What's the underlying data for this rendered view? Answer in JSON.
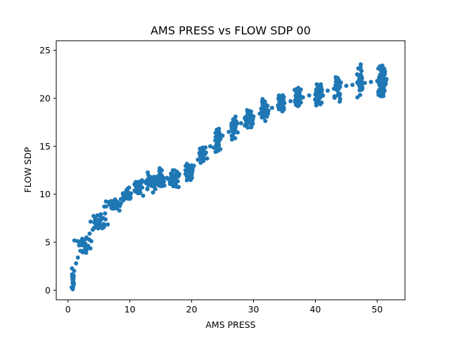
{
  "chart_data": {
    "type": "scatter",
    "title": "AMS PRESS vs FLOW SDP 00",
    "xlabel": "AMS PRESS",
    "ylabel": "FLOW SDP",
    "xlim": [
      -1.9,
      54.5
    ],
    "ylim": [
      -1.0,
      26.0
    ],
    "xticks": [
      0,
      10,
      20,
      30,
      40,
      50
    ],
    "yticks": [
      0,
      5,
      10,
      15,
      20,
      25
    ],
    "grid": false,
    "legend": "none",
    "marker_color": "#1f77b4",
    "trend": [
      [
        0.6,
        0.3
      ],
      [
        0.8,
        1.2
      ],
      [
        1.0,
        2.0
      ],
      [
        1.3,
        2.8
      ],
      [
        1.6,
        3.4
      ],
      [
        2.0,
        4.1
      ],
      [
        2.5,
        4.9
      ],
      [
        3.0,
        5.5
      ],
      [
        3.5,
        5.9
      ],
      [
        4.0,
        6.3
      ],
      [
        4.5,
        6.7
      ],
      [
        5.0,
        7.0
      ],
      [
        6.0,
        8.0
      ],
      [
        7.0,
        8.6
      ],
      [
        8.0,
        9.2
      ],
      [
        9.0,
        9.7
      ],
      [
        10.0,
        10.1
      ],
      [
        11.0,
        10.4
      ],
      [
        12.0,
        10.7
      ],
      [
        13.0,
        11.0
      ],
      [
        14.0,
        11.3
      ],
      [
        15.0,
        11.5
      ],
      [
        16.0,
        11.7
      ],
      [
        17.0,
        11.9
      ],
      [
        18.0,
        12.1
      ],
      [
        19.0,
        12.5
      ],
      [
        20.0,
        13.0
      ],
      [
        21.0,
        13.6
      ],
      [
        22.0,
        14.3
      ],
      [
        23.0,
        15.0
      ],
      [
        24.0,
        15.6
      ],
      [
        25.0,
        16.1
      ],
      [
        26.0,
        16.5
      ],
      [
        27.0,
        17.0
      ],
      [
        28.0,
        17.4
      ],
      [
        29.0,
        17.8
      ],
      [
        30.0,
        18.1
      ],
      [
        31.0,
        18.4
      ],
      [
        32.0,
        18.7
      ],
      [
        33.0,
        19.0
      ],
      [
        34.0,
        19.3
      ],
      [
        35.0,
        19.5
      ],
      [
        36.0,
        19.7
      ],
      [
        37.0,
        19.9
      ],
      [
        38.0,
        20.1
      ],
      [
        39.0,
        20.3
      ],
      [
        40.0,
        20.4
      ],
      [
        41.0,
        20.6
      ],
      [
        42.0,
        20.8
      ],
      [
        43.0,
        21.0
      ],
      [
        44.0,
        21.2
      ],
      [
        45.0,
        21.3
      ],
      [
        46.0,
        21.4
      ],
      [
        47.0,
        21.5
      ],
      [
        48.0,
        21.6
      ],
      [
        49.0,
        21.7
      ],
      [
        50.0,
        21.8
      ],
      [
        51.0,
        21.9
      ],
      [
        51.5,
        22.0
      ]
    ],
    "clusters": [
      {
        "x": 0.8,
        "y": 1.0,
        "sx": 0.15,
        "sy": 0.8,
        "n": 20
      },
      {
        "x": 2.5,
        "y": 4.8,
        "sx": 0.8,
        "sy": 0.6,
        "n": 30
      },
      {
        "x": 5.0,
        "y": 7.0,
        "sx": 1.0,
        "sy": 0.6,
        "n": 30
      },
      {
        "x": 7.5,
        "y": 9.0,
        "sx": 0.9,
        "sy": 0.4,
        "n": 30
      },
      {
        "x": 9.5,
        "y": 10.0,
        "sx": 0.7,
        "sy": 0.4,
        "n": 30
      },
      {
        "x": 11.5,
        "y": 10.6,
        "sx": 0.6,
        "sy": 0.5,
        "n": 35
      },
      {
        "x": 13.5,
        "y": 11.2,
        "sx": 0.6,
        "sy": 0.6,
        "n": 40
      },
      {
        "x": 15.0,
        "y": 11.6,
        "sx": 0.5,
        "sy": 0.7,
        "n": 40
      },
      {
        "x": 17.0,
        "y": 11.6,
        "sx": 0.6,
        "sy": 0.6,
        "n": 40
      },
      {
        "x": 19.5,
        "y": 12.2,
        "sx": 0.5,
        "sy": 0.7,
        "n": 40
      },
      {
        "x": 21.8,
        "y": 14.0,
        "sx": 0.4,
        "sy": 0.8,
        "n": 35
      },
      {
        "x": 24.2,
        "y": 15.6,
        "sx": 0.4,
        "sy": 0.9,
        "n": 40
      },
      {
        "x": 26.8,
        "y": 17.0,
        "sx": 0.4,
        "sy": 0.8,
        "n": 40
      },
      {
        "x": 29.3,
        "y": 17.9,
        "sx": 0.4,
        "sy": 0.8,
        "n": 45
      },
      {
        "x": 31.8,
        "y": 18.8,
        "sx": 0.4,
        "sy": 0.9,
        "n": 45
      },
      {
        "x": 34.5,
        "y": 19.5,
        "sx": 0.4,
        "sy": 0.8,
        "n": 45
      },
      {
        "x": 37.2,
        "y": 20.0,
        "sx": 0.4,
        "sy": 0.8,
        "n": 45
      },
      {
        "x": 40.5,
        "y": 20.4,
        "sx": 0.4,
        "sy": 0.9,
        "n": 45
      },
      {
        "x": 43.6,
        "y": 21.3,
        "sx": 0.4,
        "sy": 0.9,
        "n": 45
      },
      {
        "x": 47.3,
        "y": 21.7,
        "sx": 0.4,
        "sy": 0.9,
        "n": 45
      },
      {
        "x": 50.8,
        "y": 21.8,
        "sx": 0.4,
        "sy": 1.1,
        "n": 110
      }
    ]
  }
}
